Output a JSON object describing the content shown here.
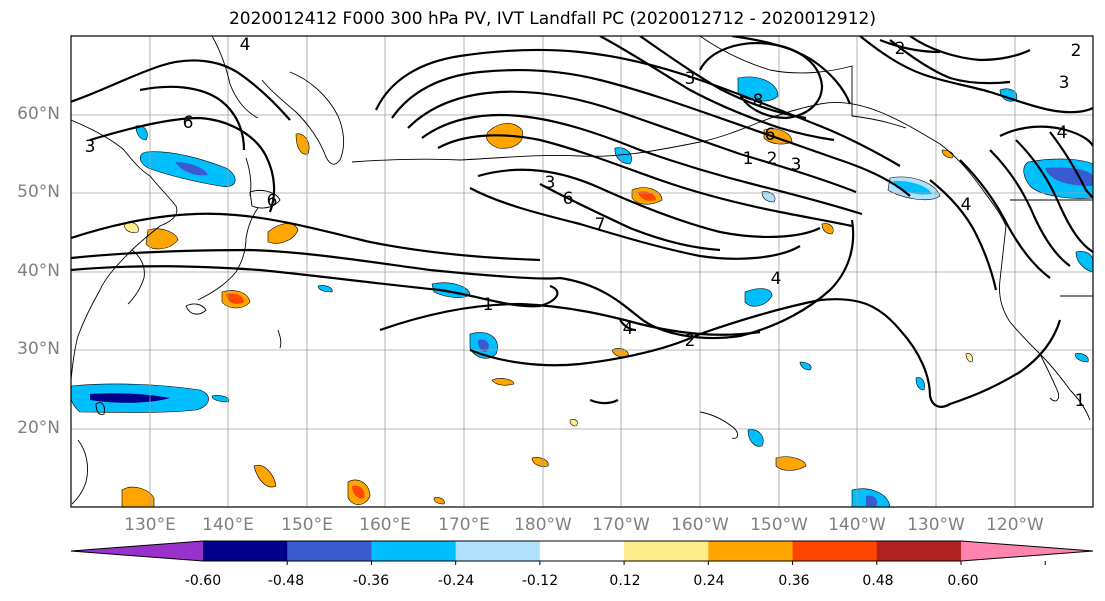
{
  "title": "2020012412 F000 300 hPa PV, IVT Landfall PC (2020012712 - 2020012912)",
  "map": {
    "projection": "PlateCarree",
    "extent_lon": [
      120,
      250
    ],
    "extent_lat": [
      10,
      70
    ],
    "gridline_color": "#a0a0a0",
    "frame_color": "#000000",
    "coastline_color": "#000000"
  },
  "lat_labels": [
    "60°N",
    "50°N",
    "40°N",
    "30°N",
    "20°N"
  ],
  "lon_labels": [
    "130°E",
    "140°E",
    "150°E",
    "160°E",
    "170°E",
    "180°W",
    "170°W",
    "160°W",
    "150°W",
    "140°W",
    "130°W",
    "120°W"
  ],
  "contour_labels": [
    "4",
    "6",
    "3",
    "6",
    "1",
    "2",
    "4",
    "3",
    "6",
    "7",
    "8",
    "6",
    "1",
    "2",
    "3",
    "2",
    "3",
    "4",
    "4",
    "3",
    "1",
    "2",
    "4"
  ],
  "colorbar": {
    "levels": [
      "-0.60",
      "-0.48",
      "-0.36",
      "-0.24",
      "-0.12",
      "0.12",
      "0.24",
      "0.36",
      "0.48",
      "0.60"
    ],
    "colors": [
      "#9932cc",
      "#00008b",
      "#3a5bcf",
      "#00bfff",
      "#b0e2ff",
      "#ffffff",
      "#ffec8b",
      "#ffa500",
      "#ff4500",
      "#b22222",
      "#ff85b0"
    ],
    "extend": "both"
  }
}
